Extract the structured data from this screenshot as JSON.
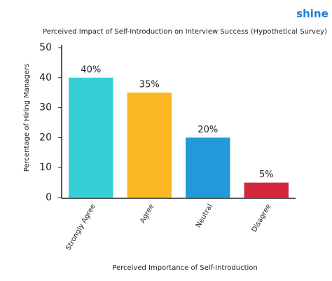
{
  "logo": "shine",
  "chart_data": {
    "type": "bar",
    "title": "Perceived Impact of Self-Introduction on Interview Success (Hypothetical Survey)",
    "x_label": "Perceived Importance of Self-Introduction",
    "y_label": "Percentage of Hiring Managers",
    "categories": [
      "Strongly Agree",
      "Agree",
      "Neutral",
      "Disagree"
    ],
    "values": [
      40,
      35,
      20,
      5
    ],
    "value_labels": [
      "40%",
      "35%",
      "20%",
      "5%"
    ],
    "colors": [
      "#36cfd6",
      "#fbb724",
      "#2399dc",
      "#d4283a"
    ],
    "ylim": [
      0,
      50
    ],
    "yticks": [
      0,
      10,
      20,
      30,
      40,
      50
    ],
    "grid": false
  }
}
